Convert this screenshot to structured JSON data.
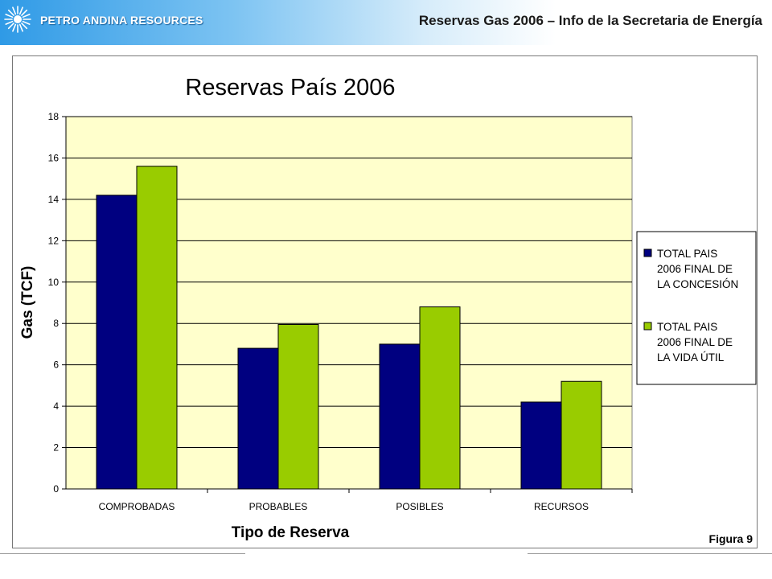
{
  "header": {
    "company": "PETRO ANDINA RESOURCES",
    "title": "Reservas Gas 2006 – Info de la Secretaria de Energía",
    "logo_icon": "sunburst-icon",
    "gradient_color": "#2f9ae6"
  },
  "figure_label": "Figura 9",
  "chart_data": {
    "type": "bar",
    "title": "Reservas País 2006",
    "xlabel": "Tipo de Reserva",
    "ylabel": "Gas (TCF)",
    "categories": [
      "COMPROBADAS",
      "PROBABLES",
      "POSIBLES",
      "RECURSOS"
    ],
    "yticks": [
      "0",
      "2",
      "4",
      "6",
      "8",
      "10",
      "12",
      "14",
      "16",
      "18"
    ],
    "ylim": [
      0,
      18
    ],
    "grid": true,
    "legend_position": "right",
    "plot_background": "#ffffcc",
    "series": [
      {
        "name": "TOTAL PAIS 2006 FINAL DE LA CONCESIÓN",
        "legend_lines": [
          "TOTAL PAIS",
          "2006 FINAL DE",
          "LA CONCESIÓN"
        ],
        "color": "#000080",
        "values": [
          14.2,
          6.8,
          7.0,
          4.2
        ]
      },
      {
        "name": "TOTAL PAIS 2006 FINAL DE LA VIDA ÚTIL",
        "legend_lines": [
          "TOTAL PAIS",
          "2006 FINAL DE",
          "LA VIDA ÚTIL"
        ],
        "color": "#99cc00",
        "values": [
          15.6,
          7.95,
          8.8,
          5.2
        ]
      }
    ]
  }
}
